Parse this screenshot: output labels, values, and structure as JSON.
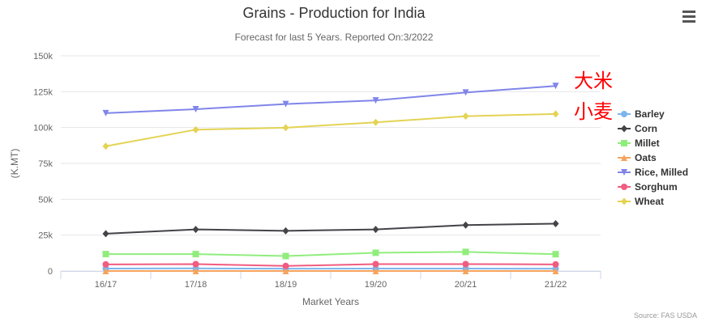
{
  "chart_data": {
    "type": "line",
    "title": "Grains - Production for India",
    "subtitle": "Forecast for last 5 Years. Reported On:3/2022",
    "xlabel": "Market Years",
    "ylabel": "(K.MT)",
    "categories": [
      "16/17",
      "17/18",
      "18/19",
      "19/20",
      "20/21",
      "21/22"
    ],
    "ylim": [
      0,
      150000
    ],
    "yticks": [
      {
        "value": 0,
        "label": "0"
      },
      {
        "value": 25000,
        "label": "25k"
      },
      {
        "value": 50000,
        "label": "50k"
      },
      {
        "value": 75000,
        "label": "75k"
      },
      {
        "value": 100000,
        "label": "100k"
      },
      {
        "value": 125000,
        "label": "125k"
      },
      {
        "value": 150000,
        "label": "150k"
      }
    ],
    "series": [
      {
        "name": "Barley",
        "color": "#7cb5ec",
        "marker": "circle",
        "values": [
          1700,
          1800,
          1600,
          1700,
          1700,
          1600
        ]
      },
      {
        "name": "Corn",
        "color": "#434348",
        "marker": "diamond",
        "values": [
          26000,
          29000,
          28000,
          29000,
          32000,
          33000
        ]
      },
      {
        "name": "Millet",
        "color": "#90ed7d",
        "marker": "square",
        "values": [
          11800,
          11800,
          10400,
          12700,
          13300,
          11700
        ]
      },
      {
        "name": "Oats",
        "color": "#f7a35c",
        "marker": "triangle",
        "values": [
          0,
          0,
          0,
          0,
          0,
          0
        ]
      },
      {
        "name": "Rice, Milled",
        "color": "#8085e9",
        "marker": "triangle-down",
        "values": [
          110000,
          112800,
          116400,
          118900,
          124400,
          129000
        ]
      },
      {
        "name": "Sorghum",
        "color": "#f15c80",
        "marker": "circle",
        "values": [
          4600,
          4800,
          3500,
          4800,
          4800,
          4600
        ]
      },
      {
        "name": "Wheat",
        "color": "#e4d354",
        "marker": "diamond",
        "values": [
          87000,
          98500,
          99900,
          103600,
          107900,
          109500
        ]
      }
    ],
    "annotations": [
      "大米",
      "小麦"
    ],
    "credit": "Source: FAS USDA",
    "menu_icon": "hamburger-menu-icon"
  }
}
